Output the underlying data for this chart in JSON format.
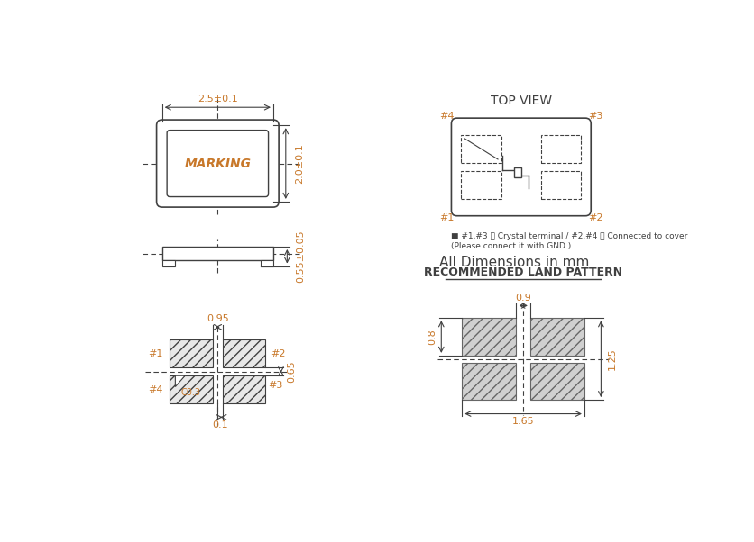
{
  "bg_color": "#ffffff",
  "line_color": "#404040",
  "dim_color": "#c8782a",
  "text_color": "#404040",
  "title": "TOP VIEW",
  "marking_text": "MARKING",
  "note_text1": "■ #1,#3 ： Crystal terminal / #2,#4 ： Connected to cover",
  "note_text2": "(Please connect it with GND.)",
  "all_dim_text": "All Dimensions in mm",
  "land_pattern_title": "RECOMMENDED LAND PATTERN"
}
